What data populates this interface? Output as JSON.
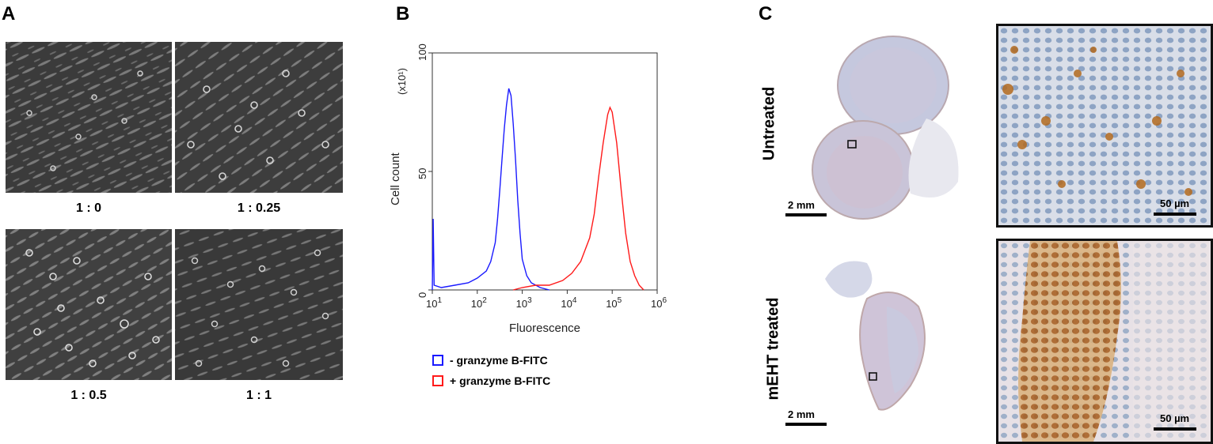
{
  "panels": {
    "a": {
      "letter": "A",
      "ratios": [
        "1 : 0",
        "1 : 0.25",
        "1 : 0.5",
        "1 : 1"
      ]
    },
    "b": {
      "letter": "B",
      "legend": [
        {
          "label": "- granzyme B-FITC",
          "color": "#1a1aff"
        },
        {
          "label": "+ granzyme B-FITC",
          "color": "#ff1a1a"
        }
      ]
    },
    "c": {
      "letter": "C",
      "rows": [
        "Untreated",
        "mEHT treated"
      ],
      "scale_low": "2 mm",
      "scale_high": "50 µm"
    }
  },
  "chart_data": {
    "type": "line",
    "xlabel": "Fluorescence",
    "ylabel": "Cell count",
    "yunit": "(x10¹)",
    "xscale": "log",
    "xlim": [
      1,
      6
    ],
    "ylim": [
      0,
      100
    ],
    "xticks": [
      {
        "exp": 1,
        "base": "10",
        "sup": "1"
      },
      {
        "exp": 2,
        "base": "10",
        "sup": "2"
      },
      {
        "exp": 3,
        "base": "10",
        "sup": "3"
      },
      {
        "exp": 4,
        "base": "10",
        "sup": "4"
      },
      {
        "exp": 5,
        "base": "10",
        "sup": "5"
      },
      {
        "exp": 6,
        "base": "10",
        "sup": "6"
      }
    ],
    "yticks": [
      "0",
      "50",
      "100"
    ],
    "series": [
      {
        "name": "- granzyme B-FITC",
        "color": "#1a1aff",
        "points": [
          [
            1.0,
            0
          ],
          [
            1.02,
            30
          ],
          [
            1.04,
            2
          ],
          [
            1.2,
            1
          ],
          [
            1.5,
            2
          ],
          [
            1.8,
            3
          ],
          [
            2.0,
            5
          ],
          [
            2.2,
            8
          ],
          [
            2.3,
            12
          ],
          [
            2.4,
            20
          ],
          [
            2.45,
            30
          ],
          [
            2.5,
            42
          ],
          [
            2.55,
            55
          ],
          [
            2.6,
            68
          ],
          [
            2.65,
            78
          ],
          [
            2.7,
            85
          ],
          [
            2.75,
            82
          ],
          [
            2.8,
            70
          ],
          [
            2.85,
            55
          ],
          [
            2.9,
            38
          ],
          [
            2.95,
            24
          ],
          [
            3.0,
            13
          ],
          [
            3.1,
            6
          ],
          [
            3.2,
            3
          ],
          [
            3.4,
            1
          ],
          [
            3.6,
            0
          ]
        ]
      },
      {
        "name": "+ granzyme B-FITC",
        "color": "#ff1a1a",
        "points": [
          [
            2.8,
            0
          ],
          [
            3.0,
            1
          ],
          [
            3.3,
            2
          ],
          [
            3.6,
            2
          ],
          [
            3.9,
            4
          ],
          [
            4.1,
            7
          ],
          [
            4.3,
            12
          ],
          [
            4.5,
            22
          ],
          [
            4.6,
            32
          ],
          [
            4.7,
            48
          ],
          [
            4.8,
            62
          ],
          [
            4.9,
            74
          ],
          [
            4.95,
            77
          ],
          [
            5.0,
            75
          ],
          [
            5.1,
            62
          ],
          [
            5.2,
            42
          ],
          [
            5.3,
            24
          ],
          [
            5.4,
            12
          ],
          [
            5.5,
            6
          ],
          [
            5.6,
            2
          ],
          [
            5.7,
            0
          ]
        ]
      }
    ]
  }
}
